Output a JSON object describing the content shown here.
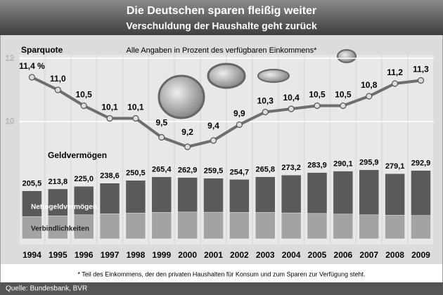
{
  "header": {
    "title": "Die Deutschen sparen fleißig weiter",
    "subtitle": "Verschuldung der Haushalte geht zurück"
  },
  "chart_data": [
    {
      "type": "line",
      "title": "Sparquote",
      "subtitle": "Alle Angaben in Prozent des verfügbaren Einkommens*",
      "categories": [
        "1994",
        "1995",
        "1996",
        "1997",
        "1998",
        "1999",
        "2000",
        "2001",
        "2002",
        "2003",
        "2004",
        "2005",
        "2006",
        "2007",
        "2008",
        "2009"
      ],
      "values": [
        11.4,
        11.0,
        10.5,
        10.1,
        10.1,
        9.5,
        9.2,
        9.4,
        9.9,
        10.3,
        10.4,
        10.5,
        10.5,
        10.8,
        11.2,
        11.3
      ],
      "value_labels": [
        "11,4 %",
        "11,0",
        "10,5",
        "10,1",
        "10,1",
        "9,5",
        "9,2",
        "9,4",
        "9,9",
        "10,3",
        "10,4",
        "10,5",
        "10,5",
        "10,8",
        "11,2",
        "11,3"
      ],
      "color": "#6e6e6e",
      "ylim": [
        9,
        12.2
      ],
      "yticks": [
        10,
        12
      ],
      "grid": true
    },
    {
      "type": "stacked_bar",
      "title": "Geldvermögen",
      "series": [
        {
          "name": "Verbindlichkeiten",
          "color": "#a3a3a3",
          "values": [
            95,
            98,
            103,
            107,
            110,
            113,
            115,
            114,
            113,
            113,
            111,
            109,
            106,
            103,
            101,
            100
          ]
        },
        {
          "name": "Nettogeldvermögen",
          "color": "#5a5a5a",
          "values": [
            110.5,
            115.8,
            122.0,
            131.6,
            140.5,
            152.4,
            147.9,
            145.5,
            141.7,
            152.8,
            162.2,
            174.9,
            184.1,
            192.9,
            178.1,
            192.9
          ]
        }
      ],
      "totals": {
        "values": [
          205.5,
          213.8,
          225.0,
          238.6,
          250.5,
          265.4,
          262.9,
          259.5,
          254.7,
          265.8,
          273.2,
          283.9,
          290.1,
          295.9,
          279.1,
          292.9
        ],
        "value_labels": [
          "205,5",
          "213,8",
          "225,0",
          "238,6",
          "250,5",
          "265,4",
          "262,9",
          "259,5",
          "254,7",
          "265,8",
          "273,2",
          "283,9",
          "290,1",
          "295,9",
          "279,1",
          "292,9"
        ]
      },
      "ylim": [
        0,
        310
      ]
    }
  ],
  "footnote": "* Teil des Einkommens, der den privaten Haushalten für Konsum und zum Sparen zur Verfügung steht.",
  "source": "Quelle: Bundesbank, BVR"
}
